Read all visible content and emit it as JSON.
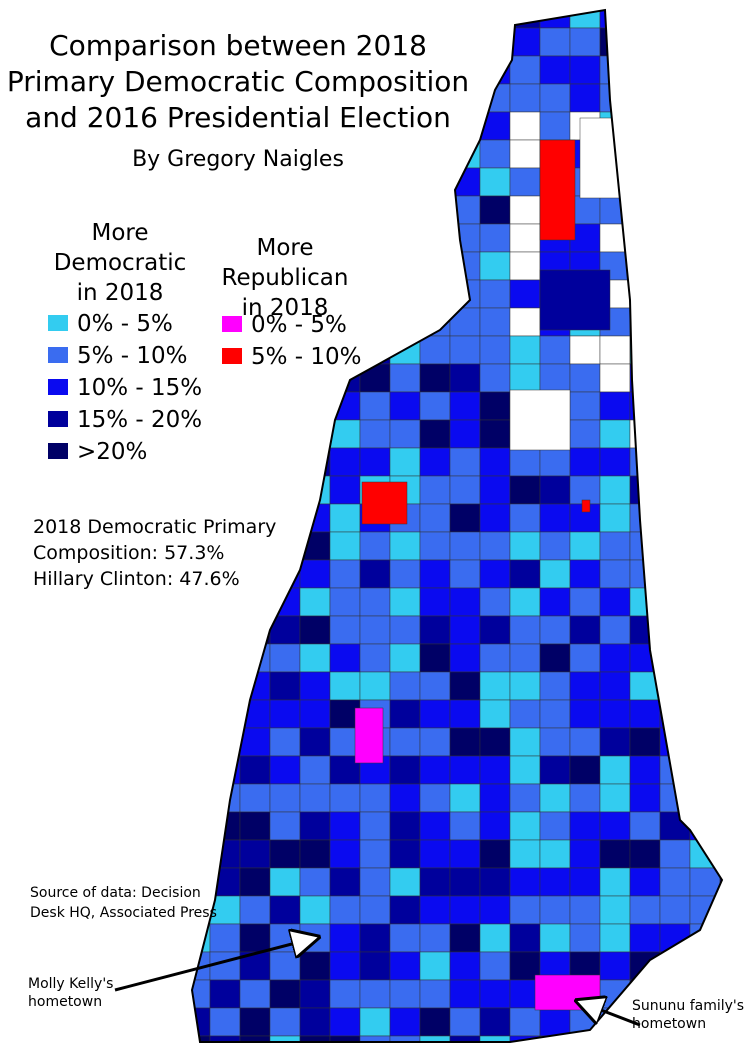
{
  "title": [
    "Comparison between 2018",
    "Primary Democratic Composition",
    "and 2016 Presidential Election"
  ],
  "byline": "By Gregory Naigles",
  "legend": [
    {
      "heading": [
        "More",
        "Democratic",
        "in 2018"
      ],
      "items": [
        {
          "label": "0% - 5%",
          "color": "#33ccf0"
        },
        {
          "label": "5% - 10%",
          "color": "#3a6cf0"
        },
        {
          "label": "10% - 15%",
          "color": "#0a0af0"
        },
        {
          "label": "15% - 20%",
          "color": "#00009c"
        },
        {
          "label": ">20%",
          "color": "#000066"
        }
      ]
    },
    {
      "heading": [
        "More",
        "Republican",
        "in 2018"
      ],
      "items": [
        {
          "label": "0% - 5%",
          "color": "#ff00ff"
        },
        {
          "label": "5% - 10%",
          "color": "#ff0000"
        }
      ]
    }
  ],
  "stats": [
    "2018 Democratic Primary",
    "Composition: 57.3%",
    "Hillary Clinton: 47.6%"
  ],
  "source": [
    "Source of data: Decision",
    "Desk HQ, Associated Press"
  ],
  "annotations": [
    {
      "lines": [
        "Molly Kelly's",
        "hometown"
      ]
    },
    {
      "lines": [
        "Sununu family's",
        "hometown"
      ]
    }
  ]
}
